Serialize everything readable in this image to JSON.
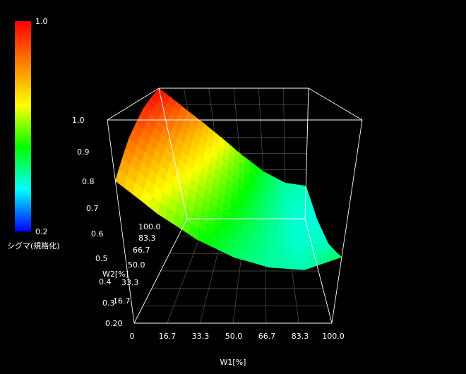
{
  "chart_data": {
    "type": "surface3d",
    "x": {
      "label": "W1[%]",
      "ticks": [
        "0",
        "16.7",
        "33.3",
        "50.0",
        "66.7",
        "83.3",
        "100.0"
      ],
      "range": [
        0,
        100
      ]
    },
    "y": {
      "label": "W2[%]",
      "ticks": [
        "16.7",
        "33.3",
        "50.0",
        "66.7",
        "83.3",
        "100.0"
      ],
      "range": [
        0,
        100
      ]
    },
    "z": {
      "ticks": [
        "0.20",
        "0.3",
        "0.4",
        "0.5",
        "0.6",
        "0.7",
        "0.8",
        "0.9",
        "1.0"
      ],
      "range": [
        0.2,
        1.0
      ]
    },
    "colorbar": {
      "label": "シグマ(規格化)",
      "min_label": "0.2",
      "max_label": "1.0",
      "colors": [
        "#ff0000",
        "#ff7f00",
        "#ffff00",
        "#00ff00",
        "#00ffff",
        "#0000ff"
      ]
    },
    "grid": true,
    "ribbons": [
      {
        "w2": 100,
        "points": [
          [
            0,
            1.0
          ],
          [
            16.7,
            0.86
          ],
          [
            33.3,
            0.73
          ],
          [
            50.0,
            0.6
          ],
          [
            66.7,
            0.49
          ],
          [
            83.3,
            0.42
          ],
          [
            100.0,
            0.4
          ]
        ]
      },
      {
        "w2": 66.7,
        "points": [
          [
            0,
            0.95
          ],
          [
            16.7,
            0.8
          ],
          [
            33.3,
            0.66
          ],
          [
            50.0,
            0.54
          ],
          [
            66.7,
            0.45
          ],
          [
            83.3,
            0.39
          ],
          [
            100.0,
            0.38
          ]
        ]
      },
      {
        "w2": 33.3,
        "points": [
          [
            0,
            0.87
          ],
          [
            16.7,
            0.72
          ],
          [
            33.3,
            0.6
          ],
          [
            50.0,
            0.5
          ],
          [
            66.7,
            0.43
          ],
          [
            83.3,
            0.39
          ],
          [
            100.0,
            0.4
          ]
        ]
      },
      {
        "w2": 0,
        "points": [
          [
            0,
            0.76
          ],
          [
            16.7,
            0.63
          ],
          [
            33.3,
            0.53
          ],
          [
            50.0,
            0.46
          ],
          [
            66.7,
            0.42
          ],
          [
            83.3,
            0.41
          ],
          [
            100.0,
            0.46
          ]
        ]
      }
    ]
  }
}
